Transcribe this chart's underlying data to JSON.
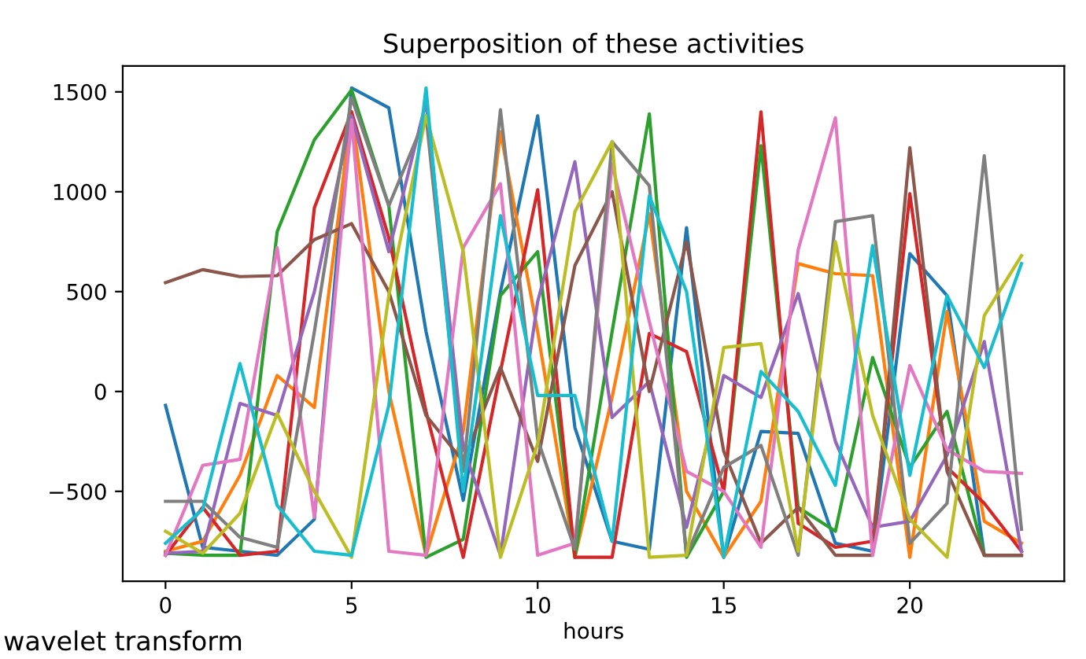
{
  "chart_data": {
    "type": "line",
    "title": "Superposition of these activities",
    "xlabel": "hours",
    "annotations": [
      "wavelet transform"
    ],
    "x": [
      0,
      1,
      2,
      3,
      4,
      5,
      6,
      7,
      8,
      9,
      10,
      11,
      12,
      13,
      14,
      15,
      16,
      17,
      18,
      19,
      20,
      21,
      22,
      23
    ],
    "xlim": [
      -1.15,
      24.15
    ],
    "xticks": [
      0,
      5,
      10,
      15,
      20
    ],
    "ylim": [
      -950,
      1630
    ],
    "yticks": [
      {
        "value": -500,
        "label": "−500"
      },
      0,
      500,
      1000,
      1500
    ],
    "grid": false,
    "legend": false,
    "marker": "none",
    "line_style": "solid",
    "series": [
      {
        "color": "#1f77b4",
        "values": [
          -70,
          -780,
          -800,
          -820,
          -640,
          1520,
          1420,
          300,
          -545,
          500,
          1380,
          -180,
          -750,
          -790,
          820,
          -830,
          -200,
          -210,
          -760,
          -800,
          690,
          480,
          -820,
          -820
        ]
      },
      {
        "color": "#ff7f0e",
        "values": [
          -800,
          -750,
          -420,
          80,
          -80,
          1400,
          0,
          -820,
          -200,
          1300,
          300,
          -830,
          -30,
          890,
          -500,
          -830,
          -550,
          640,
          590,
          580,
          -830,
          400,
          -650,
          -760
        ]
      },
      {
        "color": "#2ca02c",
        "values": [
          -810,
          -820,
          -820,
          800,
          1260,
          1510,
          930,
          -830,
          -740,
          480,
          700,
          -830,
          300,
          1390,
          -830,
          -500,
          1230,
          -580,
          -700,
          170,
          -380,
          -100,
          -820,
          -820
        ]
      },
      {
        "color": "#d62728",
        "values": [
          -820,
          -580,
          -820,
          -800,
          920,
          1400,
          770,
          -100,
          -830,
          100,
          1010,
          -830,
          -830,
          290,
          200,
          -500,
          1400,
          -660,
          -780,
          -750,
          990,
          -380,
          -560,
          -800
        ]
      },
      {
        "color": "#9467bd",
        "values": [
          -810,
          -800,
          -60,
          -120,
          500,
          1380,
          700,
          1450,
          -280,
          -820,
          450,
          1150,
          -130,
          50,
          -680,
          80,
          -30,
          490,
          -250,
          -680,
          -650,
          -320,
          250,
          -800
        ]
      },
      {
        "color": "#8c564b",
        "values": [
          545,
          610,
          575,
          580,
          760,
          840,
          500,
          -120,
          -350,
          120,
          -350,
          630,
          1000,
          0,
          750,
          -300,
          -760,
          -580,
          -820,
          -820,
          1220,
          -400,
          -820,
          -820
        ]
      },
      {
        "color": "#e377c2",
        "values": [
          -820,
          -370,
          -340,
          720,
          -630,
          1360,
          -800,
          -820,
          720,
          1040,
          -820,
          -760,
          1140,
          350,
          -400,
          -500,
          -780,
          710,
          1370,
          -820,
          130,
          -290,
          -400,
          -410
        ]
      },
      {
        "color": "#7f7f7f",
        "values": [
          -550,
          -550,
          -730,
          -780,
          300,
          1470,
          930,
          1380,
          -400,
          1410,
          -240,
          -790,
          1250,
          1030,
          -820,
          -380,
          -270,
          -820,
          850,
          880,
          -760,
          -560,
          1180,
          -690
        ]
      },
      {
        "color": "#bcbd22",
        "values": [
          -700,
          -810,
          -610,
          -110,
          -500,
          -830,
          480,
          1380,
          700,
          -830,
          -260,
          900,
          1250,
          -830,
          -820,
          220,
          240,
          -800,
          750,
          -120,
          -640,
          -830,
          380,
          680
        ]
      },
      {
        "color": "#17becf",
        "values": [
          -760,
          -590,
          140,
          -570,
          -800,
          -820,
          -70,
          1520,
          -500,
          880,
          -20,
          -20,
          -750,
          980,
          500,
          -830,
          100,
          -100,
          -470,
          730,
          -420,
          480,
          120,
          640
        ]
      }
    ]
  }
}
